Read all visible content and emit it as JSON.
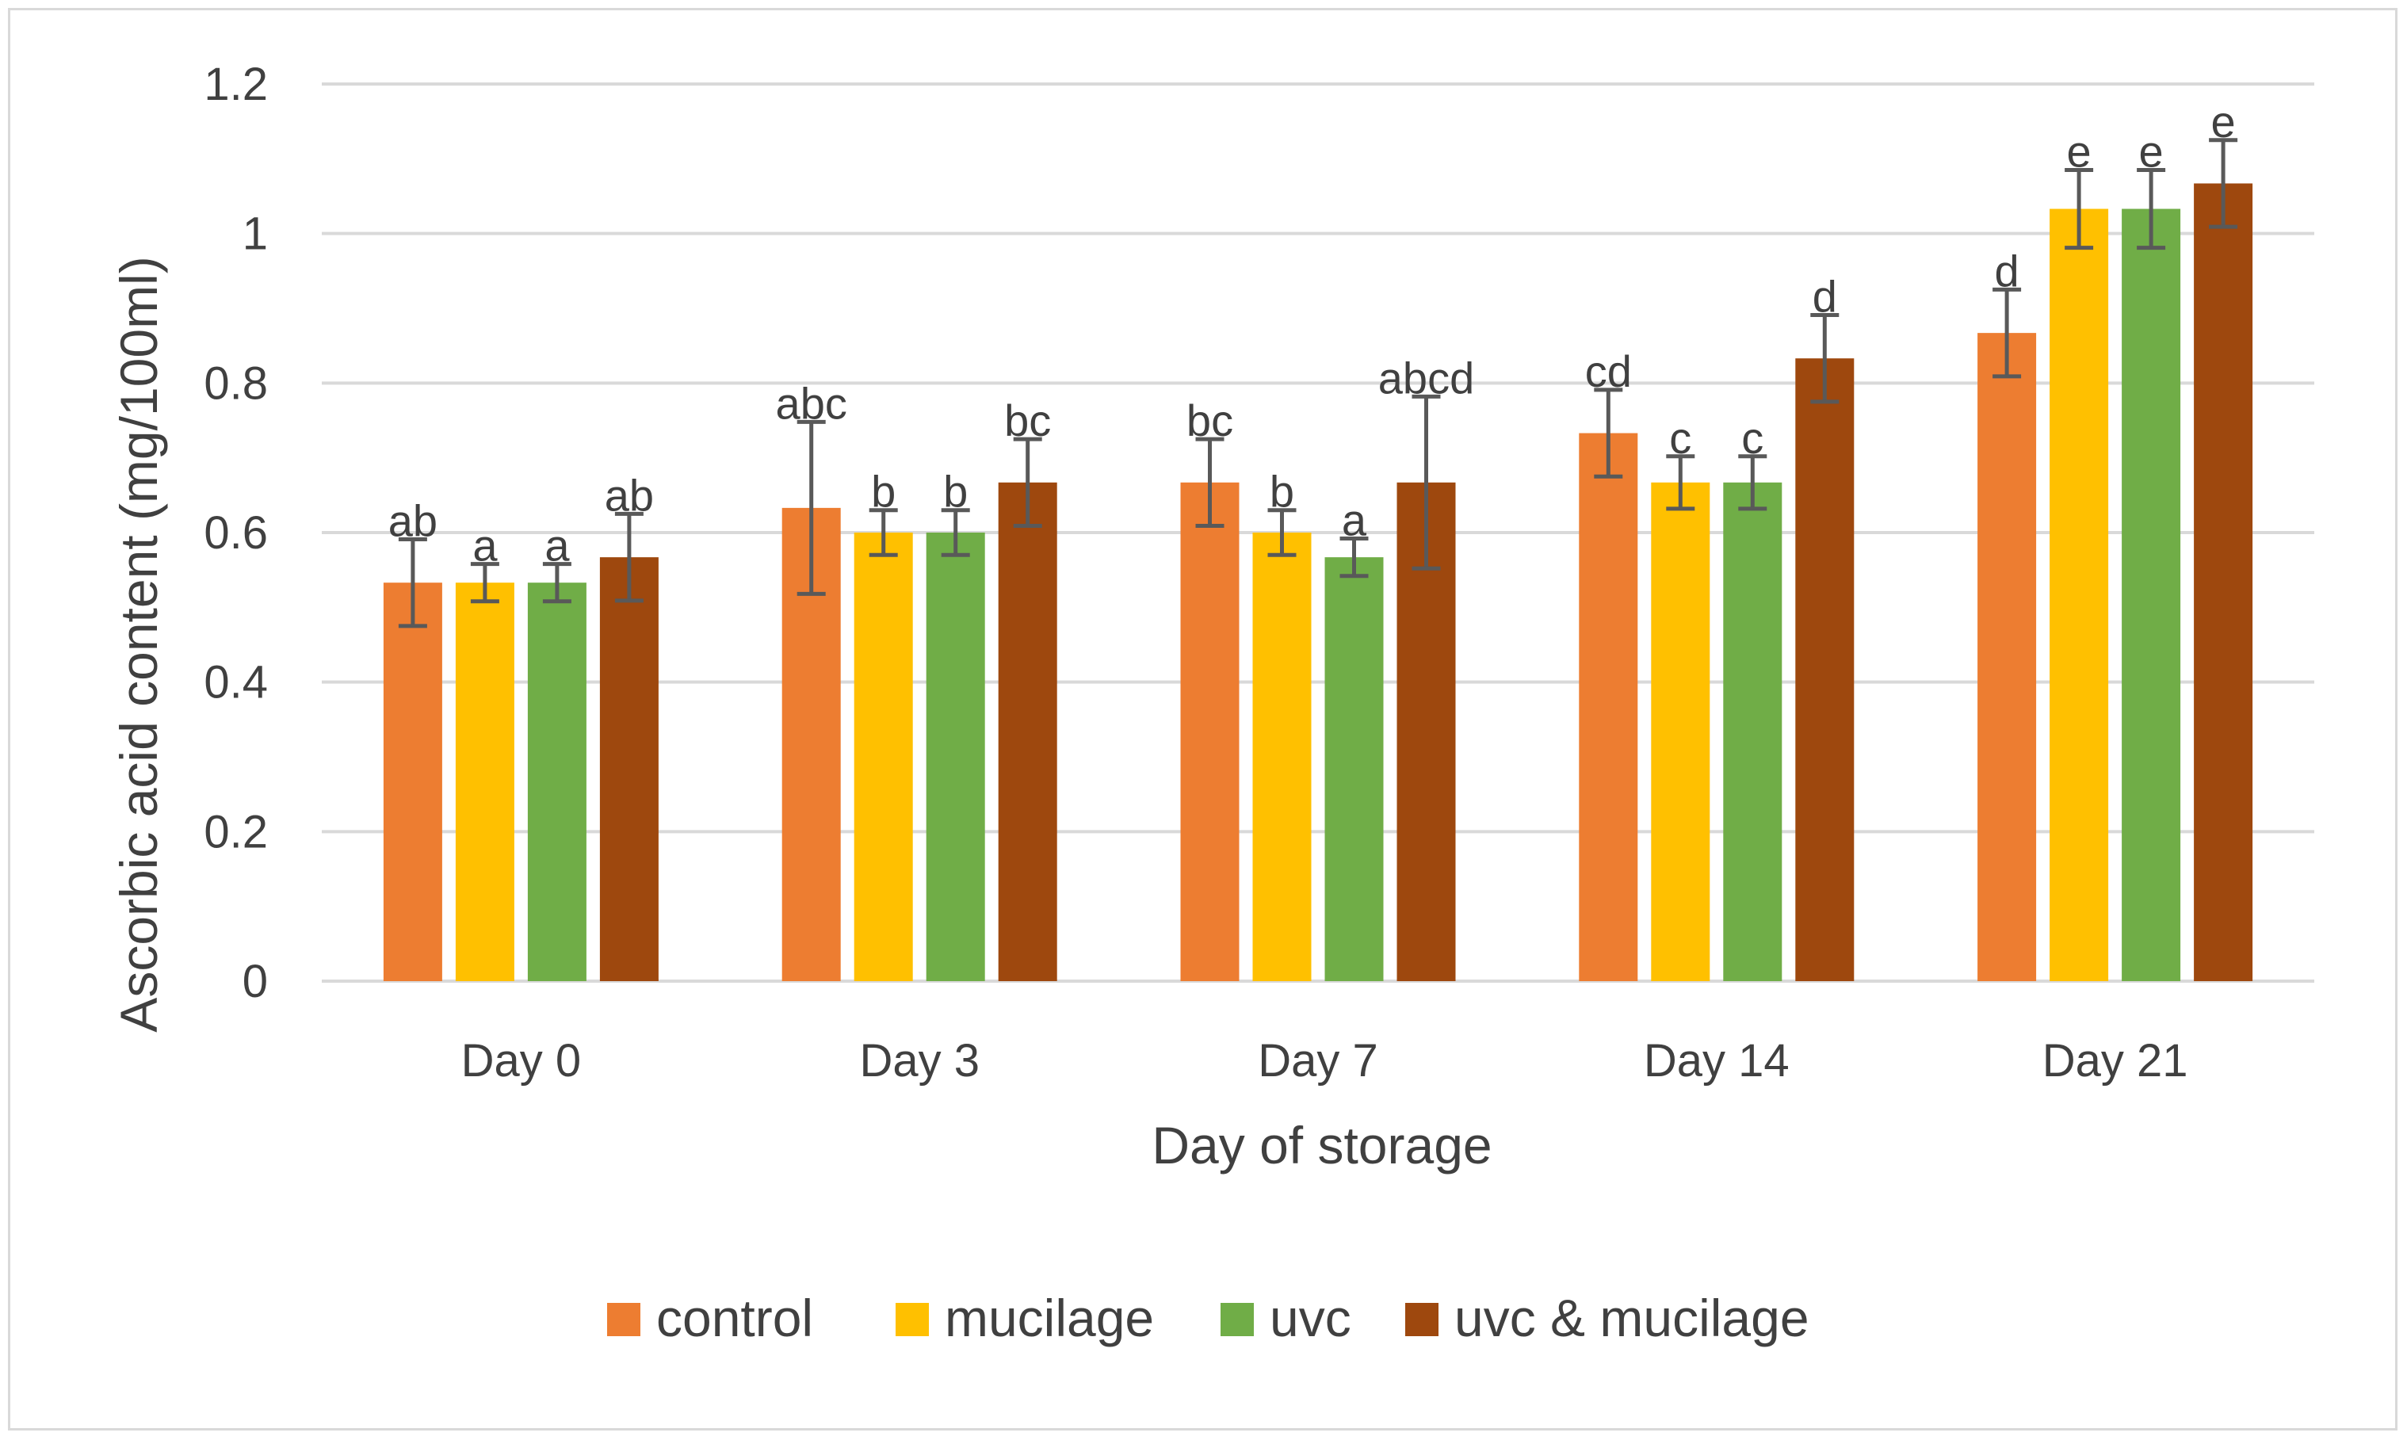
{
  "chart_data": {
    "type": "bar",
    "title": "",
    "xlabel": "Day of storage",
    "ylabel": "Ascorbic acid content (mg/100ml)",
    "ylim": [
      0,
      1.2
    ],
    "yticks": [
      0,
      0.2,
      0.4,
      0.6,
      0.8,
      1,
      1.2
    ],
    "ytick_labels": [
      "0",
      "0.2",
      "0.4",
      "0.6",
      "0.8",
      "1",
      "1.2"
    ],
    "grid": true,
    "legend_position": "bottom",
    "categories": [
      "Day 0",
      "Day 3",
      "Day 7",
      "Day 14",
      "Day 21"
    ],
    "series": [
      {
        "name": "control",
        "color": "#ED7D31",
        "values": [
          0.533,
          0.633,
          0.667,
          0.733,
          0.867
        ],
        "errors": [
          0.058,
          0.115,
          0.058,
          0.058,
          0.058
        ],
        "labels": [
          "ab",
          "abc",
          "bc",
          "cd",
          "d"
        ]
      },
      {
        "name": "mucilage",
        "color": "#FFC000",
        "values": [
          0.533,
          0.6,
          0.6,
          0.667,
          1.033
        ],
        "errors": [
          0.025,
          0.03,
          0.03,
          0.035,
          0.052
        ],
        "labels": [
          "a",
          "b",
          "b",
          "c",
          "e"
        ]
      },
      {
        "name": "uvc",
        "color": "#70AD47",
        "values": [
          0.533,
          0.6,
          0.567,
          0.667,
          1.033
        ],
        "errors": [
          0.025,
          0.03,
          0.025,
          0.035,
          0.052
        ],
        "labels": [
          "a",
          "b",
          "a",
          "c",
          "e"
        ]
      },
      {
        "name": "uvc & mucilage",
        "color": "#9E480E",
        "values": [
          0.567,
          0.667,
          0.667,
          0.833,
          1.067
        ],
        "errors": [
          0.058,
          0.058,
          0.115,
          0.058,
          0.058
        ],
        "labels": [
          "ab",
          "bc",
          "abcd",
          "d",
          "e"
        ]
      }
    ]
  }
}
